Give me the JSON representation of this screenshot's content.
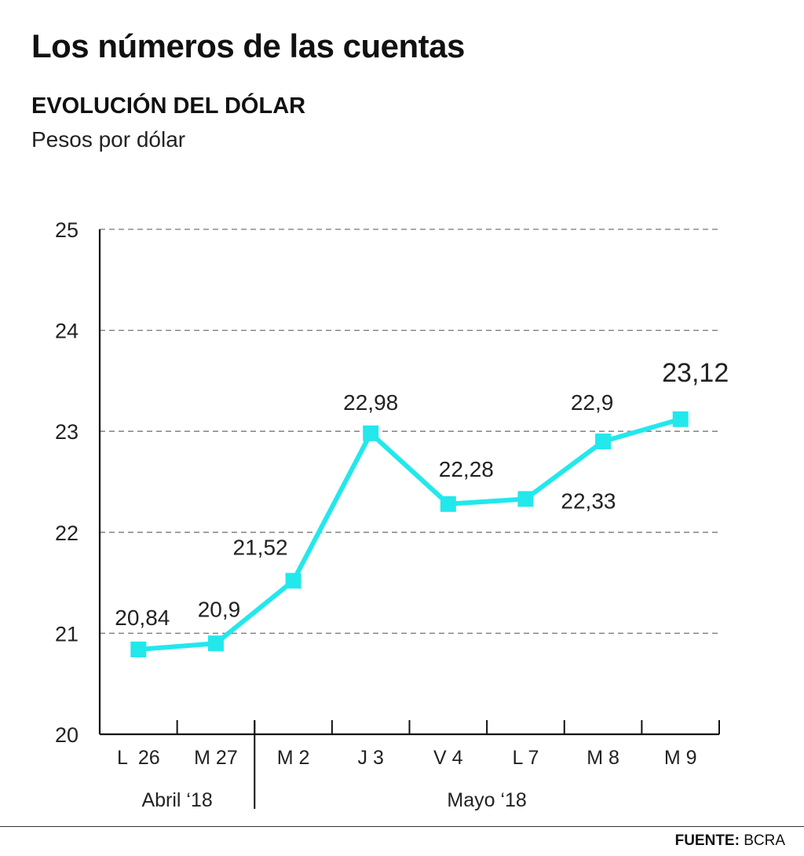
{
  "headline": "Los números de las cuentas",
  "source": {
    "label": "FUENTE:",
    "value": "BCRA"
  },
  "colors": {
    "series": "#22e8ec",
    "axis": "#111111",
    "grid": "#777777",
    "text": "#222222"
  },
  "chart_data": {
    "type": "line",
    "title": "EVOLUCIÓN DEL DÓLAR",
    "subtitle": "Pesos por dólar",
    "xlabel": "",
    "ylabel": "",
    "ylim": [
      20,
      25
    ],
    "yticks": [
      "20",
      "21",
      "22",
      "23",
      "24",
      "25"
    ],
    "grid": true,
    "grid_style": "dashed horizontal",
    "categories": [
      "L  26",
      "M 27",
      "M 2",
      "J 3",
      "V 4",
      "L 7",
      "M 8",
      "M 9"
    ],
    "groups": [
      {
        "label": "Abril ‘18",
        "categories": [
          "L  26",
          "M 27"
        ]
      },
      {
        "label": "Mayo ‘18",
        "categories": [
          "M 2",
          "J 3",
          "V 4",
          "L 7",
          "M 8",
          "M 9"
        ]
      }
    ],
    "series": [
      {
        "values": [
          20.84,
          20.9,
          21.52,
          22.98,
          22.28,
          22.33,
          22.9,
          23.12
        ],
        "data_labels": [
          "20,84",
          "20,9",
          "21,52",
          "22,98",
          "22,28",
          "22,33",
          "22,9",
          "23,12"
        ],
        "marker": "square"
      }
    ]
  }
}
